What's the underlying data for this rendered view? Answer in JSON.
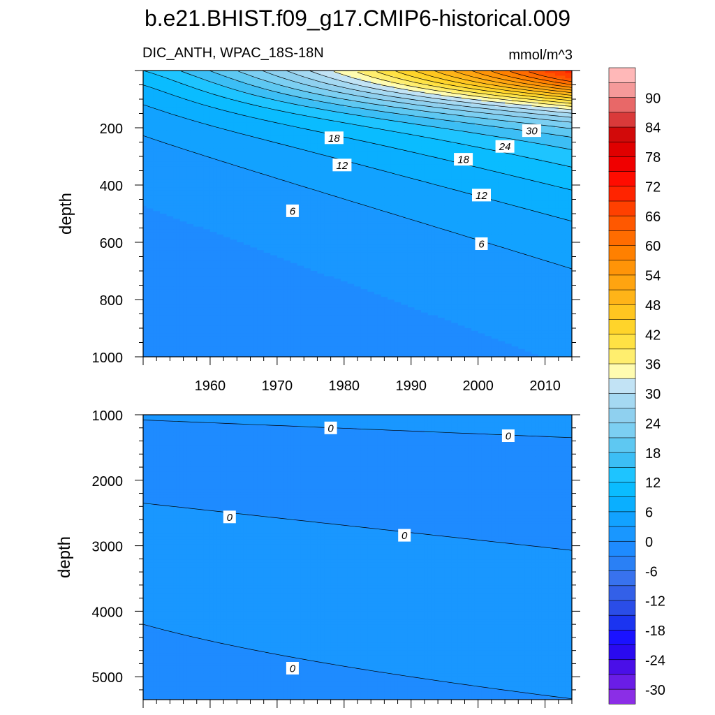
{
  "chart_data": {
    "type": "contour",
    "title": "b.e21.BHIST.f09_g17.CMIP6-historical.009",
    "subtitle_left": "DIC_ANTH, WPAC_18S-18N",
    "units": "mmol/m^3",
    "colorbar": {
      "levels": [
        -33,
        -30,
        -27,
        -24,
        -21,
        -18,
        -15,
        -12,
        -9,
        -6,
        -3,
        0,
        3,
        6,
        9,
        12,
        15,
        18,
        21,
        24,
        27,
        30,
        33,
        36,
        39,
        42,
        45,
        48,
        51,
        54,
        57,
        60,
        63,
        66,
        69,
        72,
        75,
        78,
        81,
        84,
        87,
        90,
        93
      ],
      "colors": [
        "#8b2ee6",
        "#6a1de6",
        "#4a0fe8",
        "#2a0af0",
        "#1a12ff",
        "#1b34f0",
        "#2a4de8",
        "#3360e8",
        "#3872ee",
        "#2a80f5",
        "#1e8bff",
        "#1997ff",
        "#12a2ff",
        "#0aafff",
        "#0abcff",
        "#1ec4ff",
        "#3cbef5",
        "#5ec8f2",
        "#7ccff2",
        "#8fd0ef",
        "#a5d9f2",
        "#c2e3f5",
        "#fffcb0",
        "#ffee6e",
        "#ffe244",
        "#ffd42a",
        "#ffc620",
        "#ffb418",
        "#ffa410",
        "#ff9408",
        "#ff8000",
        "#ff6c00",
        "#ff5800",
        "#ff4000",
        "#ff2400",
        "#ff0c00",
        "#f00000",
        "#e00000",
        "#d20a0a",
        "#da3a3a",
        "#e86868",
        "#f59a9a",
        "#ffb8b8"
      ],
      "label_values": [
        "90",
        "84",
        "78",
        "72",
        "66",
        "60",
        "54",
        "48",
        "42",
        "36",
        "30",
        "24",
        "18",
        "12",
        "6",
        "0",
        "-6",
        "-12",
        "-18",
        "-24",
        "-30"
      ]
    },
    "panels": [
      {
        "name": "upper",
        "ylabel": "depth",
        "ylim": [
          1000,
          0
        ],
        "y_ticks": [
          "200",
          "400",
          "600",
          "800",
          "1000"
        ],
        "x_ticks": [
          "1960",
          "1970",
          "1980",
          "1990",
          "2000",
          "2010"
        ],
        "xlim": [
          1950,
          2014
        ],
        "contour_labels": [
          {
            "text": "18",
            "year": 1978.5,
            "depth": 235
          },
          {
            "text": "12",
            "year": 1979.7,
            "depth": 330
          },
          {
            "text": "6",
            "year": 1972.3,
            "depth": 490
          },
          {
            "text": "30",
            "year": 2008.0,
            "depth": 210
          },
          {
            "text": "24",
            "year": 2004.0,
            "depth": 265
          },
          {
            "text": "18",
            "year": 1997.8,
            "depth": 310
          },
          {
            "text": "12",
            "year": 2000.5,
            "depth": 435
          },
          {
            "text": "6",
            "year": 2000.5,
            "depth": 605
          }
        ]
      },
      {
        "name": "lower",
        "ylabel": "depth",
        "ylim": [
          1000,
          5350
        ],
        "y_ticks": [
          "1000",
          "2000",
          "3000",
          "4000",
          "5000"
        ],
        "xlim": [
          1950,
          2014
        ],
        "contour_labels": [
          {
            "text": "0",
            "year": 1978.0,
            "depth": 1200
          },
          {
            "text": "0",
            "year": 2004.5,
            "depth": 1320
          },
          {
            "text": "0",
            "year": 1962.9,
            "depth": 2560
          },
          {
            "text": "0",
            "year": 1989.0,
            "depth": 2840
          },
          {
            "text": "0",
            "year": 1972.3,
            "depth": 4870
          }
        ]
      }
    ]
  }
}
